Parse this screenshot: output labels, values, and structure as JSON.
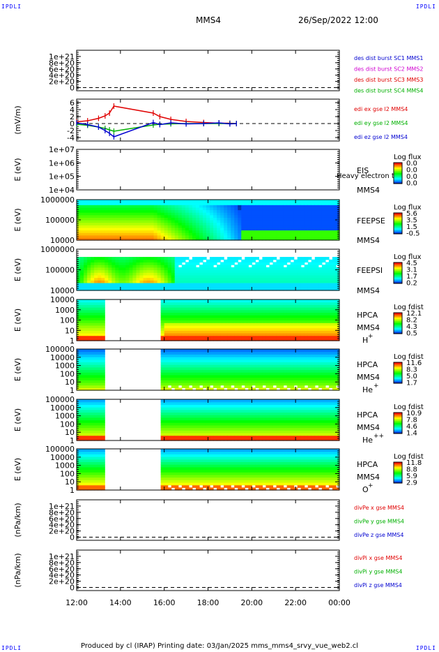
{
  "page": {
    "corner_label": "IPDLI",
    "spacecraft": "MMS4",
    "datetime": "26/Sep/2022 12:00",
    "footer": "Produced by cl (IRAP)   Printing date: 03/Jan/2025   mms_mms4_srvy_vue_web2.cl"
  },
  "colors": {
    "red": "#e00000",
    "green": "#00b000",
    "blue": "#0000d0",
    "magenta": "#d000d0"
  },
  "time_axis": {
    "ticks": [
      "12:00",
      "14:00",
      "16:00",
      "18:00",
      "20:00",
      "22:00",
      "00:00"
    ],
    "start_hour": 12,
    "end_hour": 24
  },
  "chart_data": [
    {
      "id": "p1",
      "type": "line",
      "ylim": [
        -1e+20,
        1.2e+21
      ],
      "yticks": [
        "1e+21",
        "8e+20",
        "6e+20",
        "4e+20",
        "2e+20",
        "0"
      ],
      "ytick_values": [
        1e+21,
        8e+20,
        6e+20,
        4e+20,
        2e+20,
        0
      ],
      "dashed_zero": true,
      "legend": [
        {
          "text": "des dist burst SC1 MMS1",
          "color": "#0000d0"
        },
        {
          "text": "des dist burst SC2 MMS2",
          "color": "#d000d0"
        },
        {
          "text": "des dist burst SC3 MMS3",
          "color": "#e00000"
        },
        {
          "text": "des dist burst SC4 MMS4",
          "color": "#00b000"
        }
      ]
    },
    {
      "id": "p2",
      "type": "line",
      "ylabel": "(mV/m)",
      "ylim": [
        -5,
        7
      ],
      "yticks": [
        "6",
        "4",
        "2",
        "0",
        "-2",
        "-4"
      ],
      "ytick_values": [
        6,
        4,
        2,
        0,
        -2,
        -4
      ],
      "dashed_zero": true,
      "series": [
        {
          "name": "edi ex gse l2 MMS4",
          "color": "#e00000",
          "x": [
            12.0,
            12.5,
            13.0,
            13.3,
            13.5,
            13.7,
            15.5,
            15.8,
            16.3,
            17.0,
            17.8,
            18.5,
            19.0,
            19.3
          ],
          "y": [
            0.5,
            0.8,
            1.5,
            2.2,
            3.0,
            5.0,
            3.0,
            2.0,
            1.2,
            0.6,
            0.3,
            0.1,
            0.1,
            0.0
          ]
        },
        {
          "name": "edi ey gse l2 MMS4",
          "color": "#00b000",
          "x": [
            12.0,
            12.5,
            13.0,
            13.3,
            13.5,
            13.7,
            15.5,
            15.8,
            16.3,
            17.0,
            17.8,
            18.5,
            19.0,
            19.3
          ],
          "y": [
            -0.2,
            -0.5,
            -1.0,
            -1.4,
            -1.8,
            -2.2,
            -0.4,
            -0.2,
            -0.1,
            0.0,
            0.0,
            0.0,
            0.0,
            0.0
          ]
        },
        {
          "name": "edi ez gse l2 MMS4",
          "color": "#0000d0",
          "x": [
            12.0,
            12.5,
            13.0,
            13.3,
            13.5,
            13.7,
            15.5,
            15.8,
            16.3,
            17.0,
            17.8,
            18.5,
            19.0,
            19.3
          ],
          "y": [
            0.2,
            -0.3,
            -1.0,
            -2.0,
            -2.8,
            -3.8,
            0.3,
            -0.3,
            0.2,
            -0.1,
            0.0,
            0.2,
            -0.1,
            0.0
          ]
        }
      ]
    },
    {
      "id": "p3",
      "type": "heatmap",
      "ylabel": "E (eV)",
      "yticks": [
        "1e+07",
        "1e+06",
        "1e+05",
        "1e+04"
      ],
      "instrument": [
        "EIS",
        "MMS4"
      ],
      "overlay_text": "Heavy electron te",
      "colorbar": {
        "title": "Log flux",
        "labels": [
          "0.0",
          "0.0",
          "0.0",
          "0.0"
        ]
      },
      "empty": true
    },
    {
      "id": "p4",
      "type": "heatmap",
      "ylabel": "E (eV)",
      "yticks": [
        "1000000",
        "100000",
        "10000"
      ],
      "instrument": [
        "FEEPSE",
        "MMS4"
      ],
      "colorbar": {
        "title": "Log flux",
        "labels": [
          "5.6",
          "3.5",
          "1.5",
          "-0.5"
        ]
      },
      "pattern": "feepse"
    },
    {
      "id": "p5",
      "type": "heatmap",
      "ylabel": "E (eV)",
      "yticks": [
        "1000000",
        "100000",
        "10000"
      ],
      "instrument": [
        "FEEPSI",
        "MMS4"
      ],
      "colorbar": {
        "title": "Log flux",
        "labels": [
          "4.5",
          "3.1",
          "1.7",
          "0.2"
        ]
      },
      "pattern": "feepsi"
    },
    {
      "id": "p6",
      "type": "heatmap",
      "ylabel": "E (eV)",
      "yticks": [
        "10000",
        "1000",
        "100",
        "10",
        "1"
      ],
      "instrument": [
        "HPCA",
        "MMS4"
      ],
      "species": "H",
      "charge": "+",
      "colorbar": {
        "title": "Log fdist",
        "labels": [
          "12.1",
          "8.2",
          "4.3",
          "0.5"
        ]
      },
      "gap": [
        13.2,
        15.9
      ],
      "pattern": "hpca_h"
    },
    {
      "id": "p7",
      "type": "heatmap",
      "ylabel": "E (eV)",
      "yticks": [
        "100000",
        "10000",
        "1000",
        "100",
        "10",
        "1"
      ],
      "instrument": [
        "HPCA",
        "MMS4"
      ],
      "species": "He",
      "charge": "+",
      "colorbar": {
        "title": "Log fdist",
        "labels": [
          "11.6",
          "8.3",
          "5.0",
          "1.7"
        ]
      },
      "gap": [
        13.2,
        15.9
      ],
      "pattern": "hpca_he"
    },
    {
      "id": "p8",
      "type": "heatmap",
      "ylabel": "E (eV)",
      "yticks": [
        "100000",
        "10000",
        "1000",
        "100",
        "10",
        "1"
      ],
      "instrument": [
        "HPCA",
        "MMS4"
      ],
      "species": "He",
      "charge": "++",
      "colorbar": {
        "title": "Log fdist",
        "labels": [
          "10.9",
          "7.8",
          "4.6",
          "1.4"
        ]
      },
      "gap": [
        13.2,
        15.9
      ],
      "pattern": "hpca_hepp"
    },
    {
      "id": "p9",
      "type": "heatmap",
      "ylabel": "E (eV)",
      "yticks": [
        "100000",
        "10000",
        "1000",
        "100",
        "10",
        "1"
      ],
      "instrument": [
        "HPCA",
        "MMS4"
      ],
      "species": "O",
      "charge": "+",
      "colorbar": {
        "title": "Log fdist",
        "labels": [
          "11.8",
          "8.8",
          "5.9",
          "2.9"
        ]
      },
      "gap": [
        13.2,
        15.9
      ],
      "pattern": "hpca_o"
    },
    {
      "id": "p10",
      "type": "line",
      "ylabel": "(nPa/km)",
      "ylim": [
        -1e+20,
        1.2e+21
      ],
      "yticks": [
        "1e+21",
        "8e+20",
        "6e+20",
        "4e+20",
        "2e+20",
        "0"
      ],
      "ytick_values": [
        1e+21,
        8e+20,
        6e+20,
        4e+20,
        2e+20,
        0
      ],
      "dashed_zero": true,
      "legend": [
        {
          "text": "divPe x gse MMS4",
          "color": "#e00000"
        },
        {
          "text": "divPe y gse MMS4",
          "color": "#00b000"
        },
        {
          "text": "divPe z gse MMS4",
          "color": "#0000d0"
        }
      ]
    },
    {
      "id": "p11",
      "type": "line",
      "ylabel": "(nPa/km)",
      "ylim": [
        -1e+20,
        1.2e+21
      ],
      "yticks": [
        "1e+21",
        "8e+20",
        "6e+20",
        "4e+20",
        "2e+20",
        "0"
      ],
      "ytick_values": [
        1e+21,
        8e+20,
        6e+20,
        4e+20,
        2e+20,
        0
      ],
      "dashed_zero": true,
      "legend": [
        {
          "text": "divPi x gse MMS4",
          "color": "#e00000"
        },
        {
          "text": "divPi y gse MMS4",
          "color": "#00b000"
        },
        {
          "text": "divPi z gse MMS4",
          "color": "#0000d0"
        }
      ]
    }
  ]
}
